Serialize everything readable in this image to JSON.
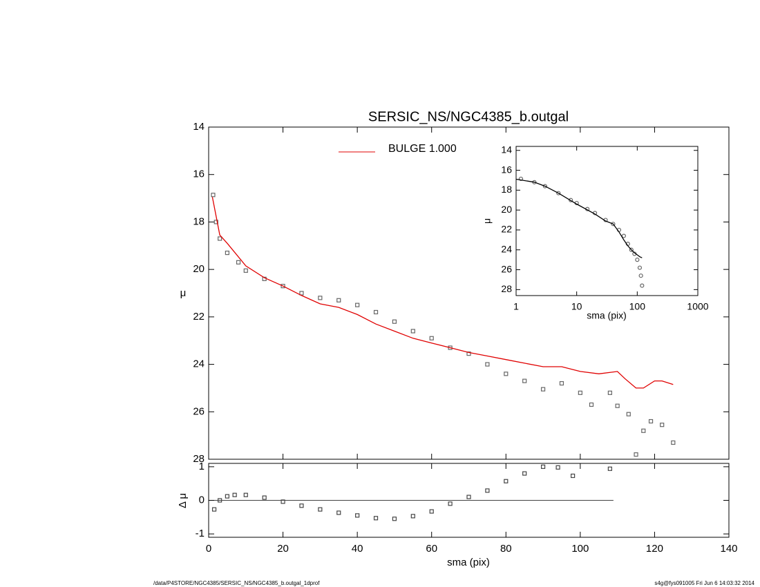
{
  "chart_data": [
    {
      "type": "scatter",
      "title": "SERSIC_NS/NGC4385_b.outgal",
      "ylabel": "μ",
      "xlim": [
        0,
        140
      ],
      "ylim": [
        14,
        28
      ],
      "y_inverted": true,
      "yticks": [
        14,
        16,
        18,
        20,
        22,
        24,
        26,
        28
      ],
      "xticks": [
        0,
        20,
        40,
        60,
        80,
        100,
        120,
        140
      ],
      "series": [
        {
          "color": "#666666",
          "marker": "square",
          "x": [
            1.2,
            2,
            3,
            5,
            8,
            10,
            15,
            20,
            25,
            30,
            35,
            40,
            45,
            50,
            55,
            60,
            65,
            70,
            75,
            80,
            85,
            90,
            95,
            100,
            103,
            108,
            110,
            113,
            115,
            117,
            119,
            122,
            125
          ],
          "values": [
            16.86,
            18.0,
            18.7,
            19.3,
            19.7,
            20.05,
            20.4,
            20.7,
            21.0,
            21.2,
            21.3,
            21.5,
            21.8,
            22.2,
            22.6,
            22.9,
            23.3,
            23.55,
            24.0,
            24.4,
            24.7,
            25.05,
            24.8,
            25.2,
            25.7,
            25.2,
            25.75,
            26.1,
            27.8,
            26.8,
            26.4,
            26.55,
            27.3
          ]
        },
        {
          "name": "BULGE  1.000",
          "color": "#e00000",
          "marker": "line",
          "x": [
            1,
            3,
            5,
            10,
            15,
            20,
            25,
            30,
            35,
            40,
            45,
            50,
            55,
            60,
            65,
            70,
            75,
            80,
            85,
            90,
            95,
            100,
            105,
            110,
            112,
            115,
            117,
            120,
            122,
            125
          ],
          "values": [
            16.95,
            18.55,
            18.9,
            19.85,
            20.35,
            20.7,
            21.1,
            21.45,
            21.6,
            21.9,
            22.3,
            22.6,
            22.9,
            23.1,
            23.3,
            23.5,
            23.65,
            23.8,
            23.95,
            24.1,
            24.1,
            24.3,
            24.4,
            24.3,
            24.6,
            25.0,
            25.0,
            24.7,
            24.7,
            24.85
          ]
        }
      ]
    },
    {
      "type": "scatter",
      "ylabel": "Δ μ",
      "xlabel": "sma (pix)",
      "xlim": [
        0,
        140
      ],
      "ylim": [
        -1.1,
        1.1
      ],
      "hline": 0,
      "yticks": [
        -1,
        0,
        1
      ],
      "xticks": [
        0,
        20,
        40,
        60,
        80,
        100,
        120,
        140
      ],
      "series": [
        {
          "color": "#444444",
          "marker": "square",
          "x": [
            1.5,
            3,
            5,
            7,
            10,
            15,
            20,
            25,
            30,
            35,
            40,
            45,
            50,
            55,
            60,
            65,
            70,
            75,
            80,
            85,
            90,
            94,
            98,
            108
          ],
          "values": [
            -0.27,
            0,
            0.12,
            0.16,
            0.16,
            0.08,
            -0.04,
            -0.16,
            -0.27,
            -0.37,
            -0.45,
            -0.53,
            -0.55,
            -0.47,
            -0.33,
            -0.1,
            0.1,
            0.29,
            0.57,
            0.8,
            1.0,
            0.98,
            0.73,
            0.94
          ]
        }
      ]
    },
    {
      "type": "scatter",
      "ylabel": "μ",
      "xlabel": "sma (pix)",
      "xlog": true,
      "xlim": [
        1,
        1000
      ],
      "ylim": [
        13.6,
        28.6
      ],
      "y_inverted": true,
      "yticks": [
        14,
        16,
        18,
        20,
        22,
        24,
        26,
        28
      ],
      "xticks": [
        1,
        10,
        100,
        1000
      ],
      "series": [
        {
          "color": "#666666",
          "marker": "circle",
          "x": [
            1.2,
            2,
            3,
            5,
            8,
            10,
            15,
            20,
            30,
            40,
            50,
            60,
            70,
            80,
            90,
            100,
            110,
            115,
            120
          ],
          "values": [
            16.86,
            17.2,
            17.6,
            18.3,
            19.0,
            19.3,
            19.9,
            20.3,
            21.0,
            21.4,
            22.0,
            22.6,
            23.4,
            24.0,
            24.4,
            25.0,
            25.8,
            26.6,
            27.6
          ]
        },
        {
          "color": "#000000",
          "marker": "line",
          "x": [
            1,
            2,
            3,
            5,
            10,
            20,
            30,
            40,
            50,
            60,
            70,
            80,
            90,
            100,
            110,
            120
          ],
          "values": [
            16.9,
            17.2,
            17.6,
            18.3,
            19.4,
            20.4,
            21.1,
            21.4,
            22.2,
            23.0,
            23.6,
            24.0,
            24.3,
            24.5,
            24.7,
            24.8
          ]
        }
      ]
    }
  ],
  "footer": {
    "left": "/data/P4STORE/NGC4385/SERSIC_NS/NGC4385_b.outgal_1dprof",
    "right": "s4g@fys091005  Fri Jun  6 14:03:32 2014"
  }
}
